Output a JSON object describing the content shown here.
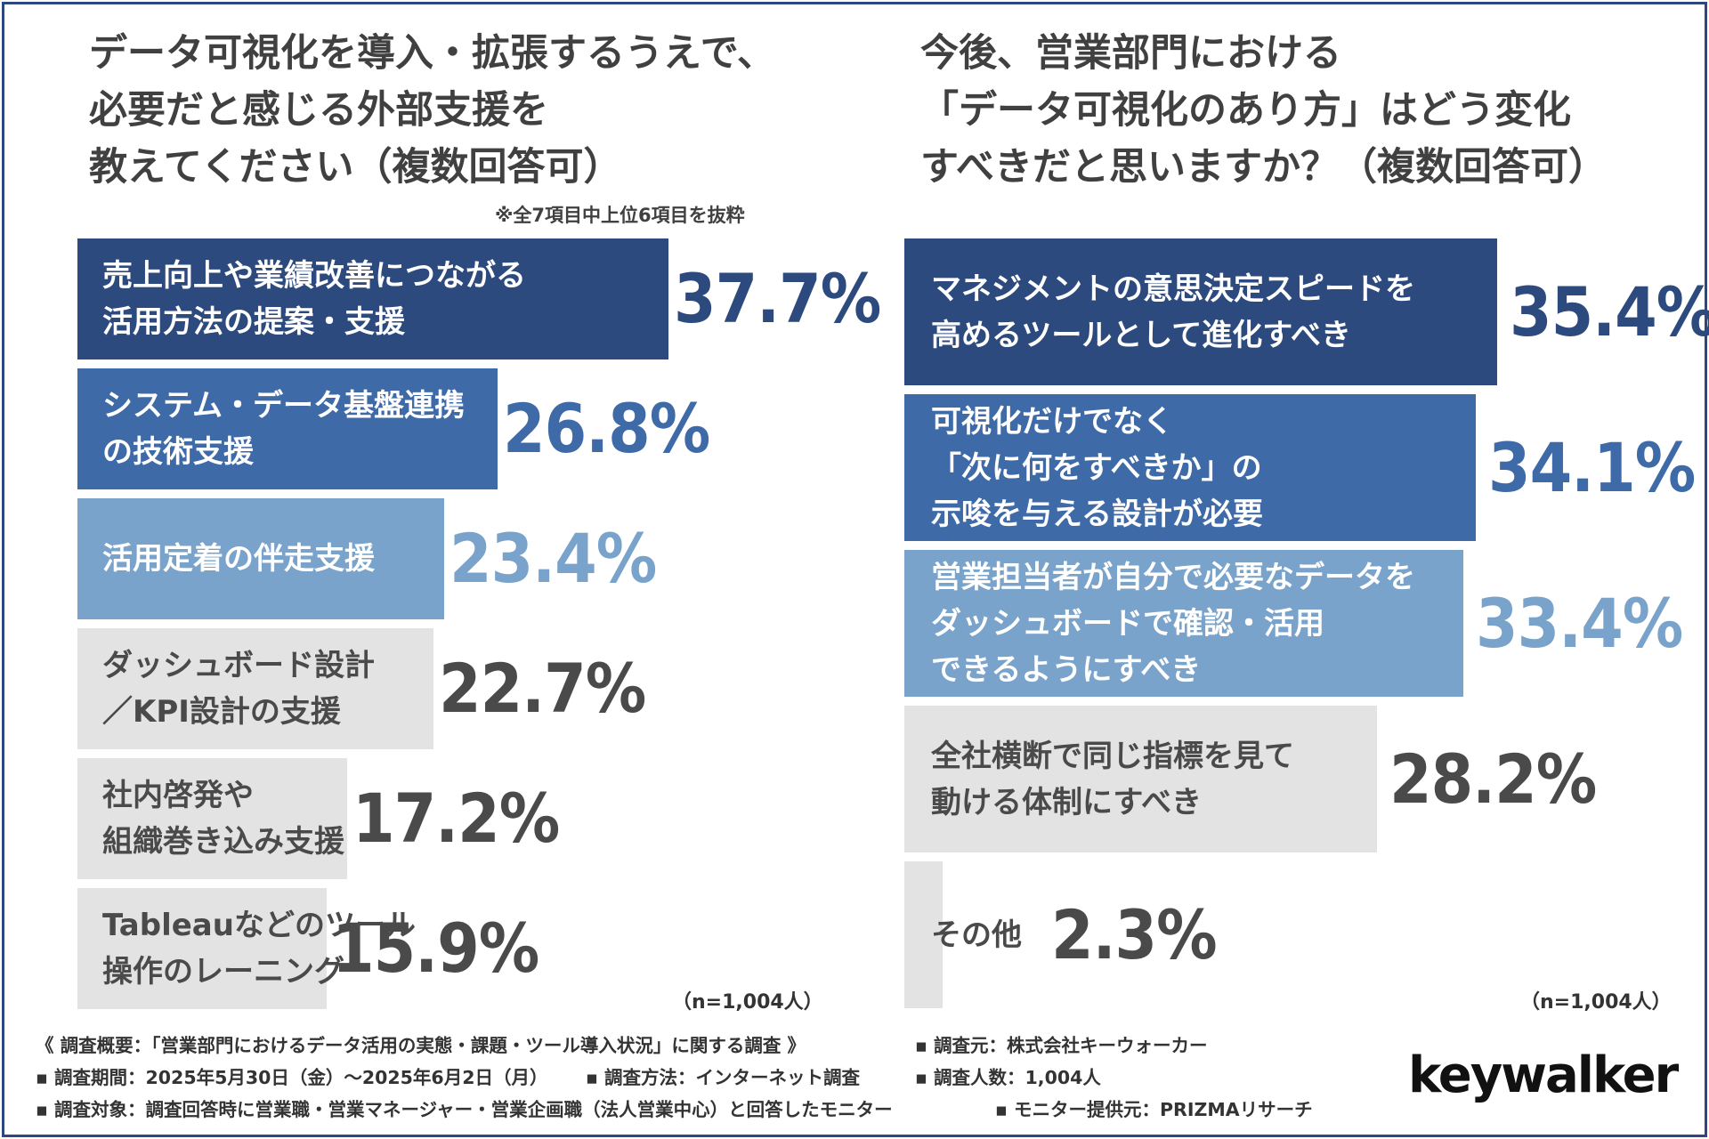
{
  "left_title": [
    "データ可視化を導入・拡張するうえで、",
    "必要だと感じる外部支援を",
    "教えてください（複数回答可）"
  ],
  "left_note": "※全7項目中上位6項目を抜粋",
  "right_title": [
    "今後、営業部門における",
    "「データ可視化のあり方」はどう変化",
    "すべきだと思いますか？（複数回答可）"
  ],
  "colors": {
    "navy": "#2d4a7f",
    "mid": "#3f6aa8",
    "light": "#79a3cb",
    "grey": "#e3e3e3",
    "grey_text": "#4a4a4a",
    "white": "#ffffff",
    "border": "#2c4880"
  },
  "chart_data": [
    {
      "type": "bar",
      "orientation": "horizontal",
      "title": "データ可視化を導入・拡張するうえで、必要だと感じる外部支援を教えてください（複数回答可）",
      "unit": "%",
      "xlim": [
        0,
        37.7
      ],
      "categories": [
        [
          "売上向上や業績改善につながる",
          "活用方法の提案・支援"
        ],
        [
          "システム・データ基盤連携",
          "の技術支援"
        ],
        [
          "活用定着の伴走支援"
        ],
        [
          "ダッシュボード設計",
          "／KPI設計の支援"
        ],
        [
          "社内啓発や",
          "組織巻き込み支援"
        ],
        [
          "Tableauなどのツール",
          "操作のレーニング"
        ]
      ],
      "values": [
        37.7,
        26.8,
        23.4,
        22.7,
        17.2,
        15.9
      ],
      "value_labels": [
        "37.7%",
        "26.8%",
        "23.4%",
        "22.7%",
        "17.2%",
        "15.9%"
      ],
      "bar_colors": [
        "#2d4a7f",
        "#3f6aa8",
        "#79a3cb",
        "#e3e3e3",
        "#e3e3e3",
        "#e3e3e3"
      ],
      "n_note": "（n=1,004人）"
    },
    {
      "type": "bar",
      "orientation": "horizontal",
      "title": "今後、営業部門における「データ可視化のあり方」はどう変化すべきだと思いますか？（複数回答可）",
      "unit": "%",
      "xlim": [
        0,
        35.4
      ],
      "categories": [
        [
          "マネジメントの意思決定スピードを",
          "高めるツールとして進化すべき"
        ],
        [
          "可視化だけでなく",
          "「次に何をすべきか」の",
          "示唆を与える設計が必要"
        ],
        [
          "営業担当者が自分で必要なデータを",
          "ダッシュボードで確認・活用",
          "できるようにすべき"
        ],
        [
          "全社横断で同じ指標を見て",
          "動ける体制にすべき"
        ],
        [
          "その他"
        ]
      ],
      "values": [
        35.4,
        34.1,
        33.4,
        28.2,
        2.3
      ],
      "value_labels": [
        "35.4%",
        "34.1%",
        "33.4%",
        "28.2%",
        "2.3%"
      ],
      "bar_colors": [
        "#2d4a7f",
        "#3f6aa8",
        "#79a3cb",
        "#e3e3e3",
        "#e3e3e3"
      ],
      "n_note": "（n=1,004人）"
    }
  ],
  "footer": {
    "survey_name": "《 調査概要：「営業部門におけるデータ活用の実態・課題・ツール導入状況」に関する調査 》",
    "surveyor": "▪ 調査元：株式会社キーウォーカー",
    "period": "▪ 調査期間：2025年5月30日（金）〜2025年6月2日（月）",
    "method": "▪ 調査方法：インターネット調査",
    "count": "▪ 調査人数：1,004人",
    "target": "▪ 調査対象：調査回答時に営業職・営業マネージャー・営業企画職（法人営業中心）と回答したモニター",
    "provider": "▪ モニター提供元：PRIZMAリサーチ"
  },
  "logo": "keywalker"
}
